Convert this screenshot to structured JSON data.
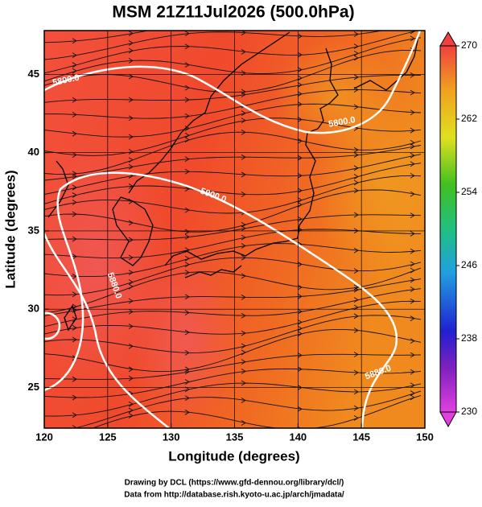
{
  "chart_data": {
    "type": "map",
    "title": "MSM 21Z11Jul2026 (500.0hPa)",
    "x_label": "Longitude (degrees)",
    "y_label": "Latitude  (degrees)",
    "xlim": [
      120,
      150
    ],
    "ylim": [
      22.4,
      47.8
    ],
    "xticks": [
      120,
      125,
      130,
      135,
      140,
      145,
      150
    ],
    "yticks": [
      25,
      30,
      35,
      40,
      45
    ],
    "grid": true,
    "colorbar": {
      "lim": [
        230,
        270
      ],
      "ticks": [
        230,
        238,
        246,
        254,
        262,
        270
      ]
    },
    "contour_labels": [
      "5800.0",
      "5800.0",
      "5900.0",
      "5880.0",
      "5880.0"
    ]
  },
  "footer": [
    "Drawing by DCL (https://www.gfd-dennou.org/library/dcl/)",
    "Data from http://database.rish.kyoto-u.ac.jp/arch/jmadata/"
  ]
}
